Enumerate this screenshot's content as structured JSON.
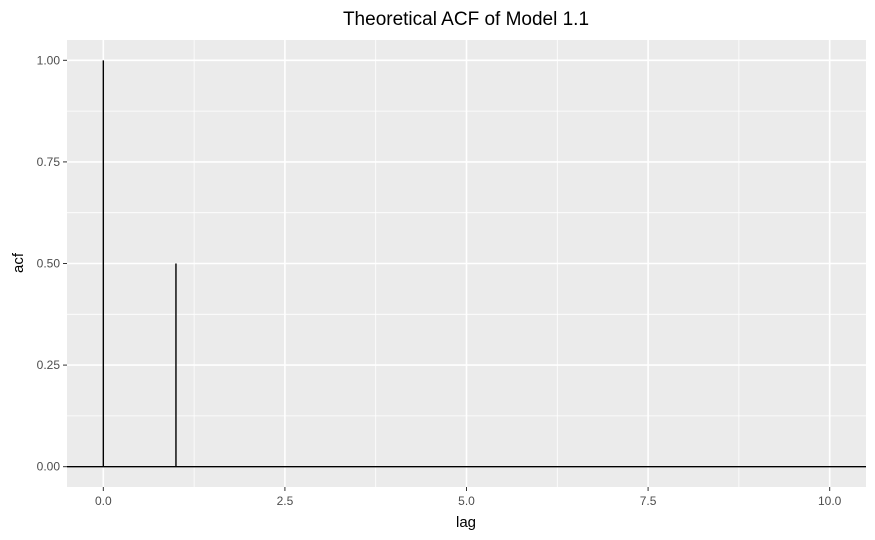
{
  "chart_data": {
    "type": "bar",
    "geometry": "segment",
    "title": "Theoretical ACF of Model 1.1",
    "xlabel": "lag",
    "ylabel": "acf",
    "xlim": [
      -0.5,
      10.5
    ],
    "ylim": [
      -0.05,
      1.05
    ],
    "x_ticks": [
      0,
      2.5,
      5,
      7.5,
      10
    ],
    "x_tick_labels": [
      "0.0",
      "2.5",
      "5.0",
      "7.5",
      "10.0"
    ],
    "y_ticks": [
      0,
      0.25,
      0.5,
      0.75,
      1
    ],
    "y_tick_labels": [
      "0.00",
      "0.25",
      "0.50",
      "0.75",
      "1.00"
    ],
    "x": [
      0,
      1,
      2,
      3,
      4,
      5,
      6,
      7,
      8,
      9,
      10
    ],
    "values": [
      1.0,
      0.5,
      0,
      0,
      0,
      0,
      0,
      0,
      0,
      0,
      0
    ],
    "hline": 0,
    "grid": true,
    "colors": {
      "panel": "#ebebeb",
      "grid": "#ffffff",
      "segments": "#000000",
      "tick_text": "#4d4d4d"
    }
  }
}
